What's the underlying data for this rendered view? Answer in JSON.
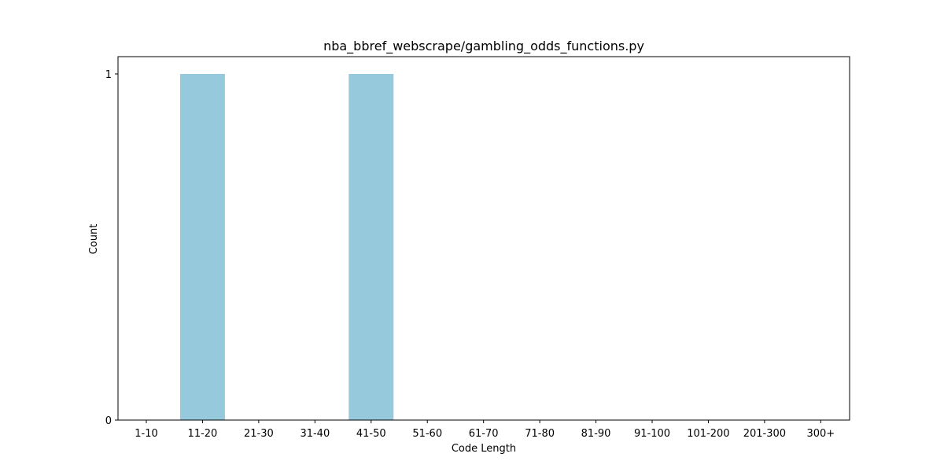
{
  "chart_data": {
    "type": "bar",
    "title": "nba_bbref_webscrape/gambling_odds_functions.py",
    "xlabel": "Code Length",
    "ylabel": "Count",
    "categories": [
      "1-10",
      "11-20",
      "21-30",
      "31-40",
      "41-50",
      "51-60",
      "61-70",
      "71-80",
      "81-90",
      "91-100",
      "101-200",
      "201-300",
      "300+"
    ],
    "values": [
      0,
      1,
      0,
      0,
      1,
      0,
      0,
      0,
      0,
      0,
      0,
      0,
      0
    ],
    "ylim": [
      0,
      1.05
    ],
    "yticks": [
      0,
      1
    ],
    "bar_color": "#96c9dc",
    "grid": false,
    "legend": "none"
  }
}
